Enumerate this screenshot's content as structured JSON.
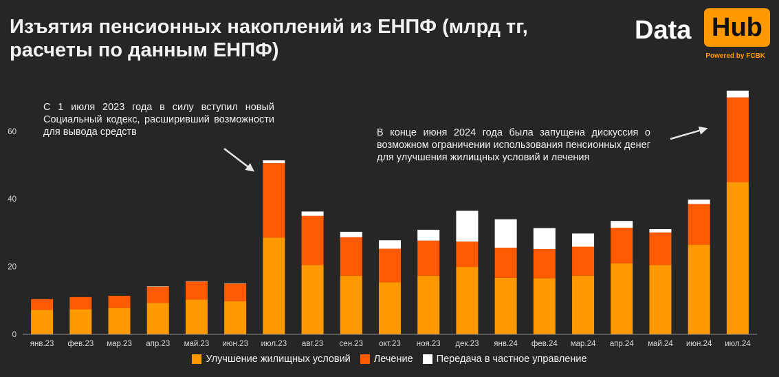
{
  "title": "Изъятия пенсионных накоплений из ЕНПФ (млрд тг, расчеты по данным ЕНПФ)",
  "logo": {
    "word1": "Data",
    "word2": "Hub",
    "tagline": "Powered by FCBK"
  },
  "annotations": [
    "С 1 июля 2023 года в силу вступил новый Социальный кодекс, расширивший возможности для вывода средств",
    "В конце июня 2024 года была запущена дискуссия о возможном ограничении использования пенсионных денег для улучшения жилищных условий и лечения"
  ],
  "colors": {
    "background": "#262626",
    "housing": "#ff9900",
    "treatment": "#ff5a00",
    "private": "#ffffff",
    "axis_text": "#d9d9d9"
  },
  "chart_data": {
    "type": "bar",
    "stacked": true,
    "title": "Изъятия пенсионных накоплений из ЕНПФ (млрд тг, расчеты по данным ЕНПФ)",
    "xlabel": "",
    "ylabel": "",
    "ylim": [
      0,
      75
    ],
    "yticks": [
      0,
      20,
      40,
      60
    ],
    "grid": false,
    "legend_position": "bottom",
    "categories": [
      "янв.23",
      "фев.23",
      "мар.23",
      "апр.23",
      "май.23",
      "июн.23",
      "июл.23",
      "авг.23",
      "сен.23",
      "окт.23",
      "ноя.23",
      "дек.23",
      "янв.24",
      "фев.24",
      "мар.24",
      "апр.24",
      "май.24",
      "июн.24",
      "июл.24"
    ],
    "series": [
      {
        "name": "Улучшение жилищных условий",
        "color": "#ff9900",
        "values": [
          7.2,
          7.4,
          7.8,
          9.3,
          10.3,
          9.8,
          28.6,
          20.5,
          17.3,
          15.4,
          17.3,
          19.9,
          16.7,
          16.6,
          17.3,
          21.0,
          20.5,
          26.5,
          45.0
        ]
      },
      {
        "name": "Лечение",
        "color": "#ff5a00",
        "values": [
          3.2,
          3.6,
          3.6,
          4.8,
          5.3,
          5.2,
          22.0,
          14.5,
          11.4,
          9.9,
          10.4,
          7.5,
          8.9,
          8.6,
          8.6,
          10.5,
          9.6,
          12.0,
          25.0
        ]
      },
      {
        "name": "Передача в частное управление",
        "color": "#ffffff",
        "values": [
          0.0,
          0.0,
          0.0,
          0.1,
          0.1,
          0.1,
          0.8,
          1.3,
          1.6,
          2.5,
          3.2,
          9.1,
          8.4,
          6.2,
          3.9,
          2.0,
          1.0,
          1.3,
          2.0
        ]
      }
    ]
  }
}
